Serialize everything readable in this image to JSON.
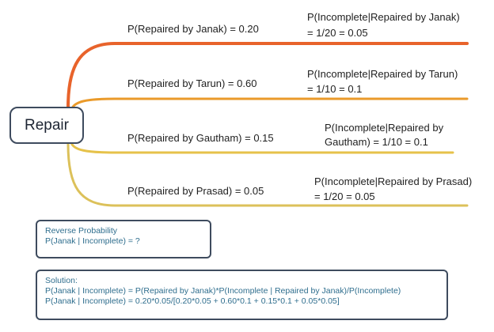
{
  "root": {
    "label": "Repair"
  },
  "branches": [
    {
      "prior": "P(Repaired by Janak) = 0.20",
      "likelihood_line1": "P(Incomplete|Repaired by Janak)",
      "likelihood_line2": "= 1/20 = 0.05",
      "color": "#e8632b"
    },
    {
      "prior": "P(Repaired by Tarun) = 0.60",
      "likelihood_line1": "P(Incomplete|Repaired by Tarun)",
      "likelihood_line2": "= 1/10 = 0.1",
      "color": "#ea9a2a"
    },
    {
      "prior": "P(Repaired by Gautham) = 0.15",
      "likelihood_line1": "P(Incomplete|Repaired by",
      "likelihood_line2": "Gautham) = 1/10 = 0.1",
      "color": "#e6c24a"
    },
    {
      "prior": "P(Repaired by Prasad) = 0.05",
      "likelihood_line1": "P(Incomplete|Repaired by Prasad)",
      "likelihood_line2": "= 1/20 = 0.05",
      "color": "#dcc15a"
    }
  ],
  "reverse_box": {
    "title": "Reverse Probability",
    "question": "P(Janak | Incomplete) = ?"
  },
  "solution_box": {
    "title": "Solution:",
    "line1": "P(Janak | Incomplete) = P(Repaired by Janak)*P(Incomplete | Repaired by Janak)/P(Incomplete)",
    "line2": "P(Janak | Incomplete) = 0.20*0.05/[0.20*0.05 + 0.60*0.1 + 0.15*0.1 + 0.05*0.05]"
  }
}
